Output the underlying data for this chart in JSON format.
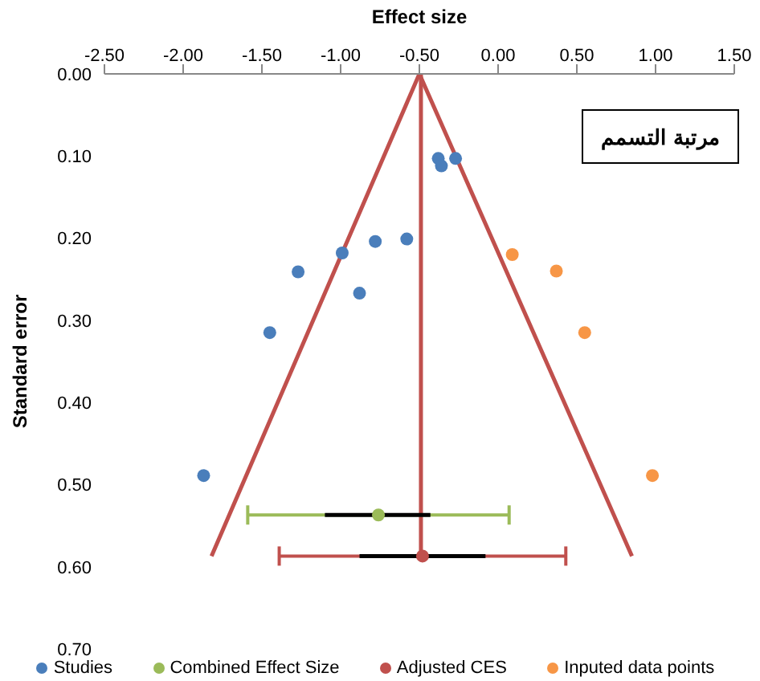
{
  "chart_data": {
    "type": "scatter",
    "title": "مرتبة التسمم",
    "xlabel": "Effect size",
    "ylabel": "Standard error",
    "xlim": [
      -2.5,
      1.5
    ],
    "xticks": [
      {
        "value": -2.5,
        "label": "-2.50"
      },
      {
        "value": -2,
        "label": "-2.00"
      },
      {
        "value": -1.5,
        "label": "-1.50"
      },
      {
        "value": -1,
        "label": "-1.00"
      },
      {
        "value": -0.5,
        "label": "-0.50"
      },
      {
        "value": 0,
        "label": "0.00"
      },
      {
        "value": 0.5,
        "label": "0.50"
      },
      {
        "value": 1,
        "label": "1.00"
      },
      {
        "value": 1.5,
        "label": "1.50"
      }
    ],
    "ylim": [
      0.7,
      0
    ],
    "yticks": [
      {
        "value": 0,
        "label": "0.00"
      },
      {
        "value": 0.1,
        "label": "0.10"
      },
      {
        "value": 0.2,
        "label": "0.20"
      },
      {
        "value": 0.3,
        "label": "0.30"
      },
      {
        "value": 0.4,
        "label": "0.40"
      },
      {
        "value": 0.5,
        "label": "0.50"
      },
      {
        "value": 0.6,
        "label": "0.60"
      },
      {
        "value": 0.7,
        "label": "0.70"
      }
    ],
    "legend": "bottom",
    "marker": "circle",
    "series": [
      {
        "type": "line",
        "color": "#c0504d",
        "x": [
          -1.82,
          -0.5,
          0.85
        ],
        "values": [
          0.587,
          0,
          0.587
        ],
        "marker": "none"
      },
      {
        "type": "line",
        "color": "#c0504d",
        "x": [
          -0.49,
          -0.49
        ],
        "values": [
          0,
          0.587
        ],
        "marker": "none"
      },
      {
        "name": "Studies",
        "color": "#4a7ebb",
        "x": [
          -0.38,
          -0.36,
          -0.27,
          -0.58,
          -0.78,
          -0.99,
          -1.27,
          -0.88,
          -1.45,
          -1.87
        ],
        "values": [
          0.103,
          0.112,
          0.103,
          0.201,
          0.204,
          0.218,
          0.241,
          0.267,
          0.315,
          0.489
        ]
      },
      {
        "name": "Combined Effect Size",
        "color": "#9bbb59",
        "x": [
          -0.76
        ],
        "values": [
          0.537
        ],
        "xerrors": [
          [
            -1.59,
            0.07
          ]
        ]
      },
      {
        "type": "line",
        "color": "#000000",
        "marker": "none",
        "x": [
          -1.1,
          -0.43
        ],
        "values": [
          0.537,
          0.537
        ]
      },
      {
        "name": "Adjusted CES",
        "color": "#c0504d",
        "x": [
          -0.48
        ],
        "values": [
          0.587
        ],
        "xerrors": [
          [
            -1.39,
            0.43
          ]
        ]
      },
      {
        "type": "line",
        "color": "#000000",
        "marker": "none",
        "x": [
          -0.88,
          -0.08
        ],
        "values": [
          0.587,
          0.587
        ]
      },
      {
        "name": "Inputed data points",
        "color": "#f79646",
        "x": [
          0.09,
          0.37,
          0.55,
          0.98
        ],
        "values": [
          0.22,
          0.24,
          0.315,
          0.489
        ]
      }
    ]
  }
}
